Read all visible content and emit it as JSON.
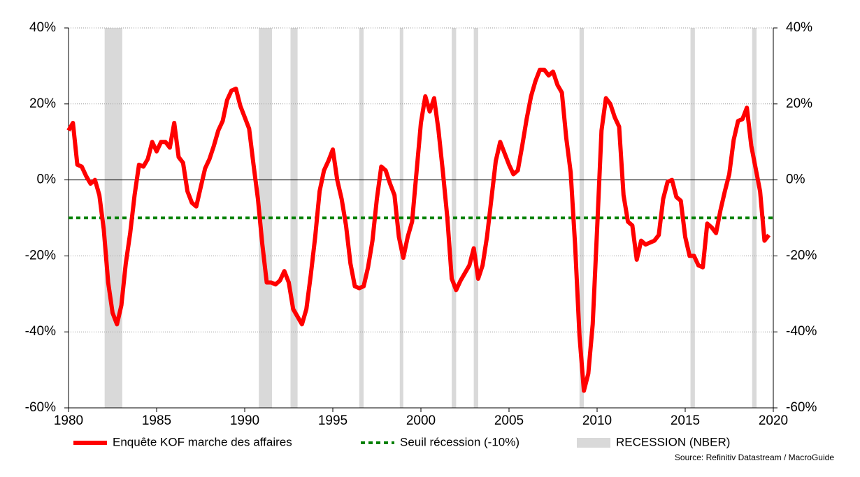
{
  "chart_data": {
    "type": "line",
    "x": [
      1980,
      1980.25,
      1980.5,
      1980.75,
      1981,
      1981.25,
      1981.5,
      1981.75,
      1982,
      1982.25,
      1982.5,
      1982.75,
      1983,
      1983.25,
      1983.5,
      1983.75,
      1984,
      1984.25,
      1984.5,
      1984.75,
      1985,
      1985.25,
      1985.5,
      1985.75,
      1986,
      1986.25,
      1986.5,
      1986.75,
      1987,
      1987.25,
      1987.5,
      1987.75,
      1988,
      1988.25,
      1988.5,
      1988.75,
      1989,
      1989.25,
      1989.5,
      1989.75,
      1990,
      1990.25,
      1990.5,
      1990.75,
      1991,
      1991.25,
      1991.5,
      1991.75,
      1992,
      1992.25,
      1992.5,
      1992.75,
      1993,
      1993.25,
      1993.5,
      1993.75,
      1994,
      1994.25,
      1994.5,
      1994.75,
      1995,
      1995.25,
      1995.5,
      1995.75,
      1996,
      1996.25,
      1996.5,
      1996.75,
      1997,
      1997.25,
      1997.5,
      1997.75,
      1998,
      1998.25,
      1998.5,
      1998.75,
      1999,
      1999.25,
      1999.5,
      1999.75,
      2000,
      2000.25,
      2000.5,
      2000.75,
      2001,
      2001.25,
      2001.5,
      2001.75,
      2002,
      2002.25,
      2002.5,
      2002.75,
      2003,
      2003.25,
      2003.5,
      2003.75,
      2004,
      2004.25,
      2004.5,
      2004.75,
      2005,
      2005.25,
      2005.5,
      2005.75,
      2006,
      2006.25,
      2006.5,
      2006.75,
      2007,
      2007.25,
      2007.5,
      2007.75,
      2008,
      2008.25,
      2008.5,
      2008.75,
      2009,
      2009.25,
      2009.5,
      2009.75,
      2010,
      2010.25,
      2010.5,
      2010.75,
      2011,
      2011.25,
      2011.5,
      2011.75,
      2012,
      2012.25,
      2012.5,
      2012.75,
      2013,
      2013.25,
      2013.5,
      2013.75,
      2014,
      2014.25,
      2014.5,
      2014.75,
      2015,
      2015.25,
      2015.5,
      2015.75,
      2016,
      2016.25,
      2016.5,
      2016.75,
      2017,
      2017.25,
      2017.5,
      2017.75,
      2018,
      2018.25,
      2018.5,
      2018.75,
      2019,
      2019.25,
      2019.5,
      2019.75
    ],
    "series": [
      {
        "name": "Enquête KOF marche des affaires",
        "color": "#ff0000",
        "values": [
          13,
          15,
          4,
          3.5,
          1,
          -1,
          0,
          -4,
          -13,
          -27,
          -35,
          -38,
          -33,
          -22,
          -14,
          -4,
          4,
          3.5,
          5.5,
          10,
          7.5,
          10,
          10,
          8.5,
          15,
          6,
          4.5,
          -3,
          -6,
          -7,
          -2,
          3,
          5.5,
          9,
          13,
          15.5,
          21,
          23.5,
          24,
          19.5,
          16.5,
          13.5,
          4,
          -5,
          -17,
          -27,
          -27,
          -27.5,
          -26.5,
          -24,
          -27,
          -34,
          -36,
          -38,
          -34,
          -25,
          -15,
          -3,
          2.5,
          5,
          8,
          0,
          -5,
          -12,
          -22,
          -28,
          -28.5,
          -28,
          -23,
          -16,
          -5,
          3.5,
          2.5,
          -1,
          -4,
          -15,
          -20.5,
          -15,
          -11,
          2,
          15,
          22,
          18,
          21.5,
          13,
          2,
          -10,
          -26,
          -29,
          -26.5,
          -24.5,
          -22.5,
          -18,
          -26,
          -22.5,
          -15,
          -5,
          5,
          10,
          7,
          4,
          1.5,
          2.5,
          9,
          16,
          22,
          26,
          29,
          29,
          27.5,
          28.5,
          25,
          23,
          11,
          2,
          -17,
          -41,
          -55.5,
          -51,
          -38,
          -13,
          13,
          21.5,
          20,
          16.5,
          14,
          -4,
          -11,
          -12,
          -21,
          -16,
          -17,
          -16.5,
          -16,
          -14.5,
          -5,
          -0.5,
          0,
          -4.5,
          -5.5,
          -15,
          -20,
          -20,
          -22.5,
          -23,
          -11.5,
          -12.5,
          -14,
          -8,
          -3,
          1.5,
          10.5,
          15.5,
          16,
          19,
          9,
          3,
          -3,
          -16,
          -14.5
        ]
      }
    ],
    "threshold": {
      "name": "Seuil récession (-10%)",
      "value": -10,
      "color": "#008000"
    },
    "recessions": {
      "name": "RECESSION (NBER)",
      "color": "#d9d9d9",
      "periods": [
        [
          1982.05,
          1983.05
        ],
        [
          1990.8,
          1991.55
        ],
        [
          1992.6,
          1993.0
        ],
        [
          1996.5,
          1996.75
        ],
        [
          1998.8,
          1999.0
        ],
        [
          2001.75,
          2002.0
        ],
        [
          2003.0,
          2003.25
        ],
        [
          2009.0,
          2009.25
        ],
        [
          2015.3,
          2015.55
        ],
        [
          2018.8,
          2019.05
        ]
      ]
    },
    "xlim": [
      1980,
      2020
    ],
    "xticks": [
      1980,
      1985,
      1990,
      1995,
      2000,
      2005,
      2010,
      2015,
      2020
    ],
    "ylim": [
      -60,
      40
    ],
    "yticks": [
      {
        "value": -60,
        "label": "-60%"
      },
      {
        "value": -40,
        "label": "-40%"
      },
      {
        "value": -20,
        "label": "-20%"
      },
      {
        "value": 0,
        "label": "0%"
      },
      {
        "value": 20,
        "label": "20%"
      },
      {
        "value": 40,
        "label": "40%"
      }
    ],
    "y2lim": [
      -60,
      40
    ],
    "y2ticks": [
      {
        "value": -60,
        "label": "-60%"
      },
      {
        "value": -40,
        "label": "-40%"
      },
      {
        "value": -20,
        "label": "-20%"
      },
      {
        "value": 0,
        "label": "0%"
      },
      {
        "value": 20,
        "label": "20%"
      },
      {
        "value": 40,
        "label": "40%"
      }
    ],
    "grid": true,
    "source": "Source: Refinitiv Datastream / MacroGuide"
  }
}
